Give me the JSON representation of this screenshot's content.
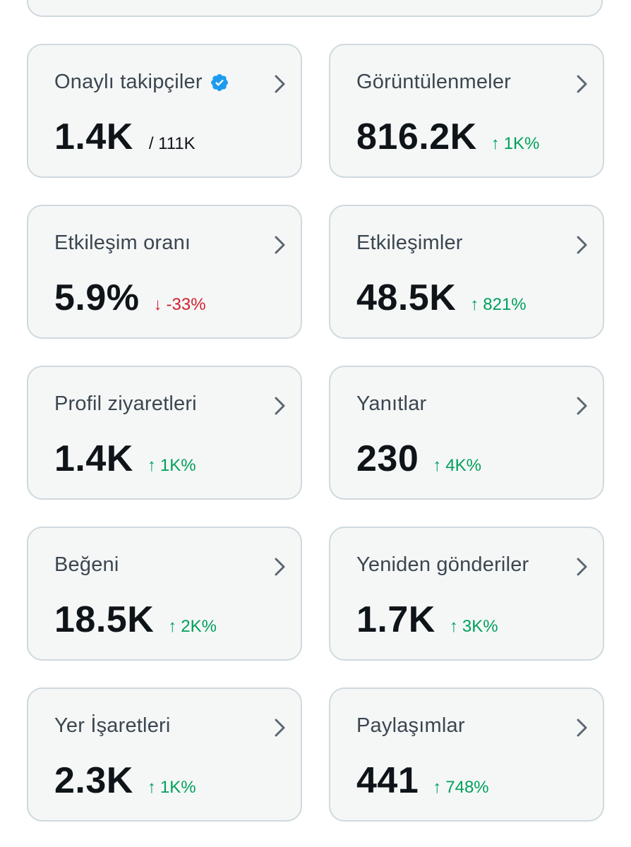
{
  "colors": {
    "card_bg": "#f5f7f7",
    "card_border": "#cfd9de",
    "up": "#00a05a",
    "down": "#d0202f",
    "verified": "#1d9bf0"
  },
  "cards": [
    {
      "title": "Onaylı takipçiler",
      "value": "1.4K",
      "sub": "/ 111K",
      "verified": true
    },
    {
      "title": "Görüntülenmeler",
      "value": "816.2K",
      "delta": "1K%",
      "direction": "up"
    },
    {
      "title": "Etkileşim oranı",
      "value": "5.9%",
      "delta": "-33%",
      "direction": "down"
    },
    {
      "title": "Etkileşimler",
      "value": "48.5K",
      "delta": "821%",
      "direction": "up"
    },
    {
      "title": "Profil ziyaretleri",
      "value": "1.4K",
      "delta": "1K%",
      "direction": "up"
    },
    {
      "title": "Yanıtlar",
      "value": "230",
      "delta": "4K%",
      "direction": "up"
    },
    {
      "title": "Beğeni",
      "value": "18.5K",
      "delta": "2K%",
      "direction": "up"
    },
    {
      "title": "Yeniden gönderiler",
      "value": "1.7K",
      "delta": "3K%",
      "direction": "up"
    },
    {
      "title": "Yer İşaretleri",
      "value": "2.3K",
      "delta": "1K%",
      "direction": "up"
    },
    {
      "title": "Paylaşımlar",
      "value": "441",
      "delta": "748%",
      "direction": "up"
    }
  ],
  "icons": {
    "chevron": "chevron-right-icon",
    "verified": "verified-badge-icon",
    "up": "↑",
    "down": "↓"
  }
}
